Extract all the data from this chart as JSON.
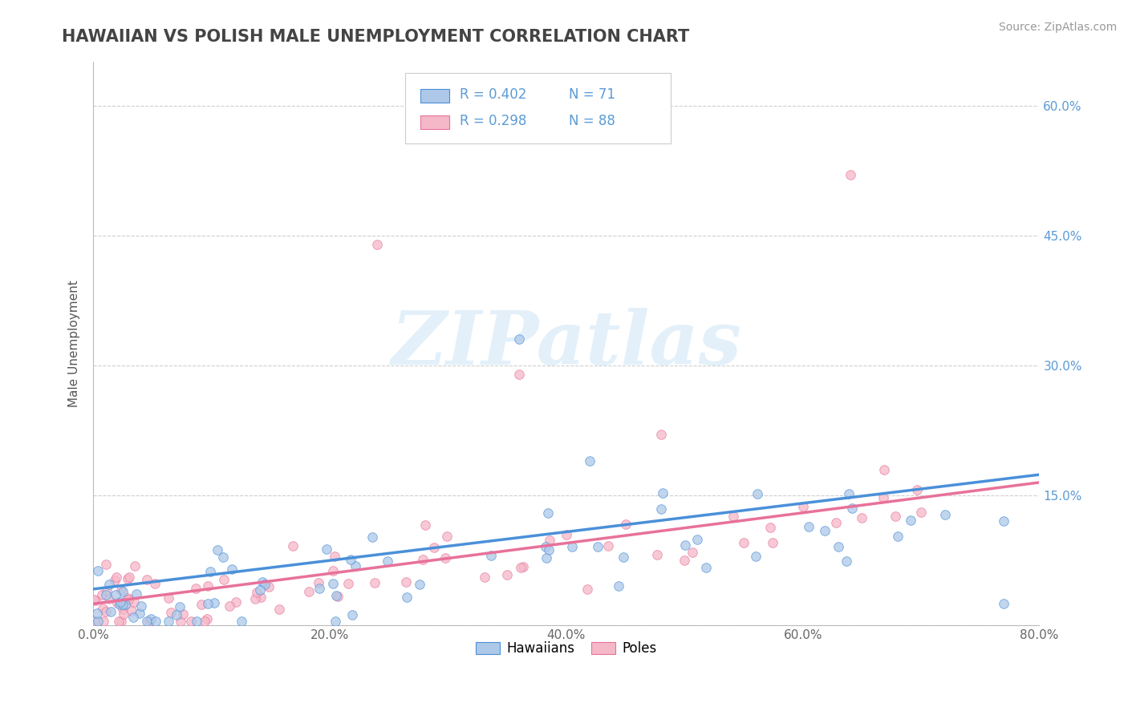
{
  "title": "HAWAIIAN VS POLISH MALE UNEMPLOYMENT CORRELATION CHART",
  "source": "Source: ZipAtlas.com",
  "ylabel": "Male Unemployment",
  "xlim": [
    0.0,
    0.8
  ],
  "ylim": [
    0.0,
    0.65
  ],
  "xticks": [
    0.0,
    0.2,
    0.4,
    0.6,
    0.8
  ],
  "xticklabels": [
    "0.0%",
    "20.0%",
    "40.0%",
    "60.0%",
    "80.0%"
  ],
  "yticks": [
    0.0,
    0.15,
    0.3,
    0.45,
    0.6
  ],
  "yticklabels": [
    "",
    "15.0%",
    "30.0%",
    "45.0%",
    "60.0%"
  ],
  "hawaiian_R": 0.402,
  "hawaiian_N": 71,
  "polish_R": 0.298,
  "polish_N": 88,
  "hawaiian_color": "#adc8e8",
  "polish_color": "#f5b8c8",
  "hawaiian_line_color": "#4a90d9",
  "polish_line_color": "#e8719a",
  "tick_color": "#5b9bd5",
  "watermark_text": "ZIPatlas",
  "legend_labels": [
    "Hawaiians",
    "Poles"
  ]
}
